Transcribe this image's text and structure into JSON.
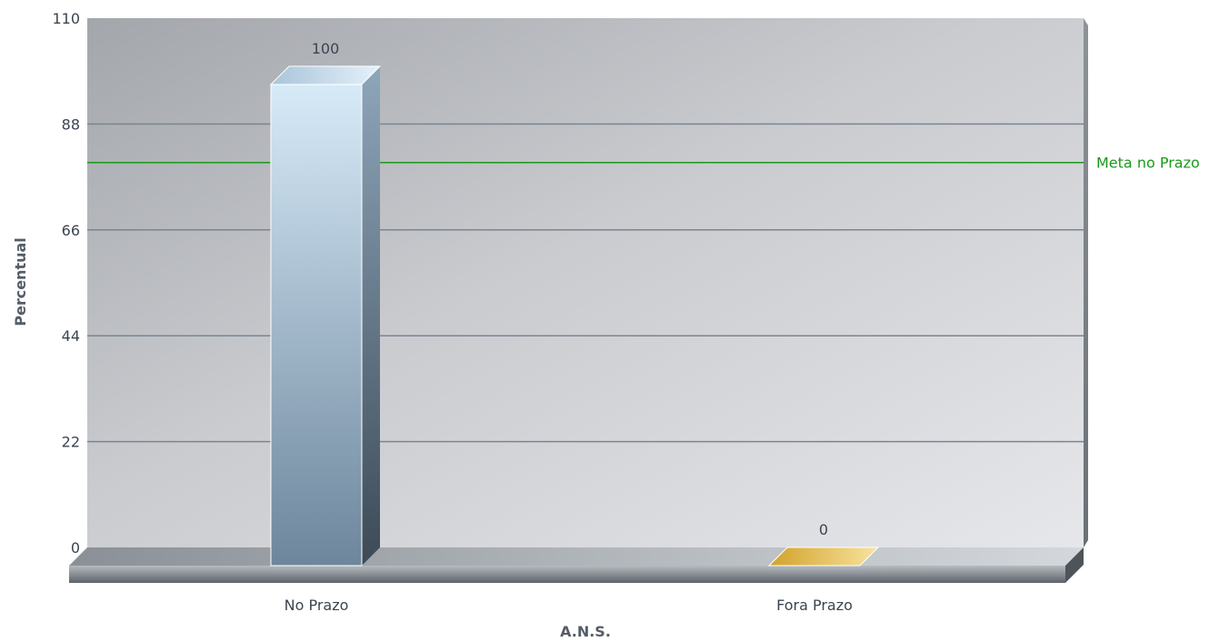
{
  "chart_data": {
    "type": "bar",
    "xlabel": "A.N.S.",
    "ylabel": "Percentual",
    "ylim": [
      0,
      110
    ],
    "yticks": [
      0,
      22,
      44,
      66,
      88,
      110
    ],
    "categories": [
      "No Prazo",
      "Fora Prazo"
    ],
    "values": [
      100,
      0
    ],
    "bar_colors": [
      "#9fb8cc",
      "#e8c45a"
    ],
    "grid": true,
    "reference_line": {
      "label": "Meta no Prazo",
      "value": 80,
      "color": "#1a9a1a"
    }
  }
}
